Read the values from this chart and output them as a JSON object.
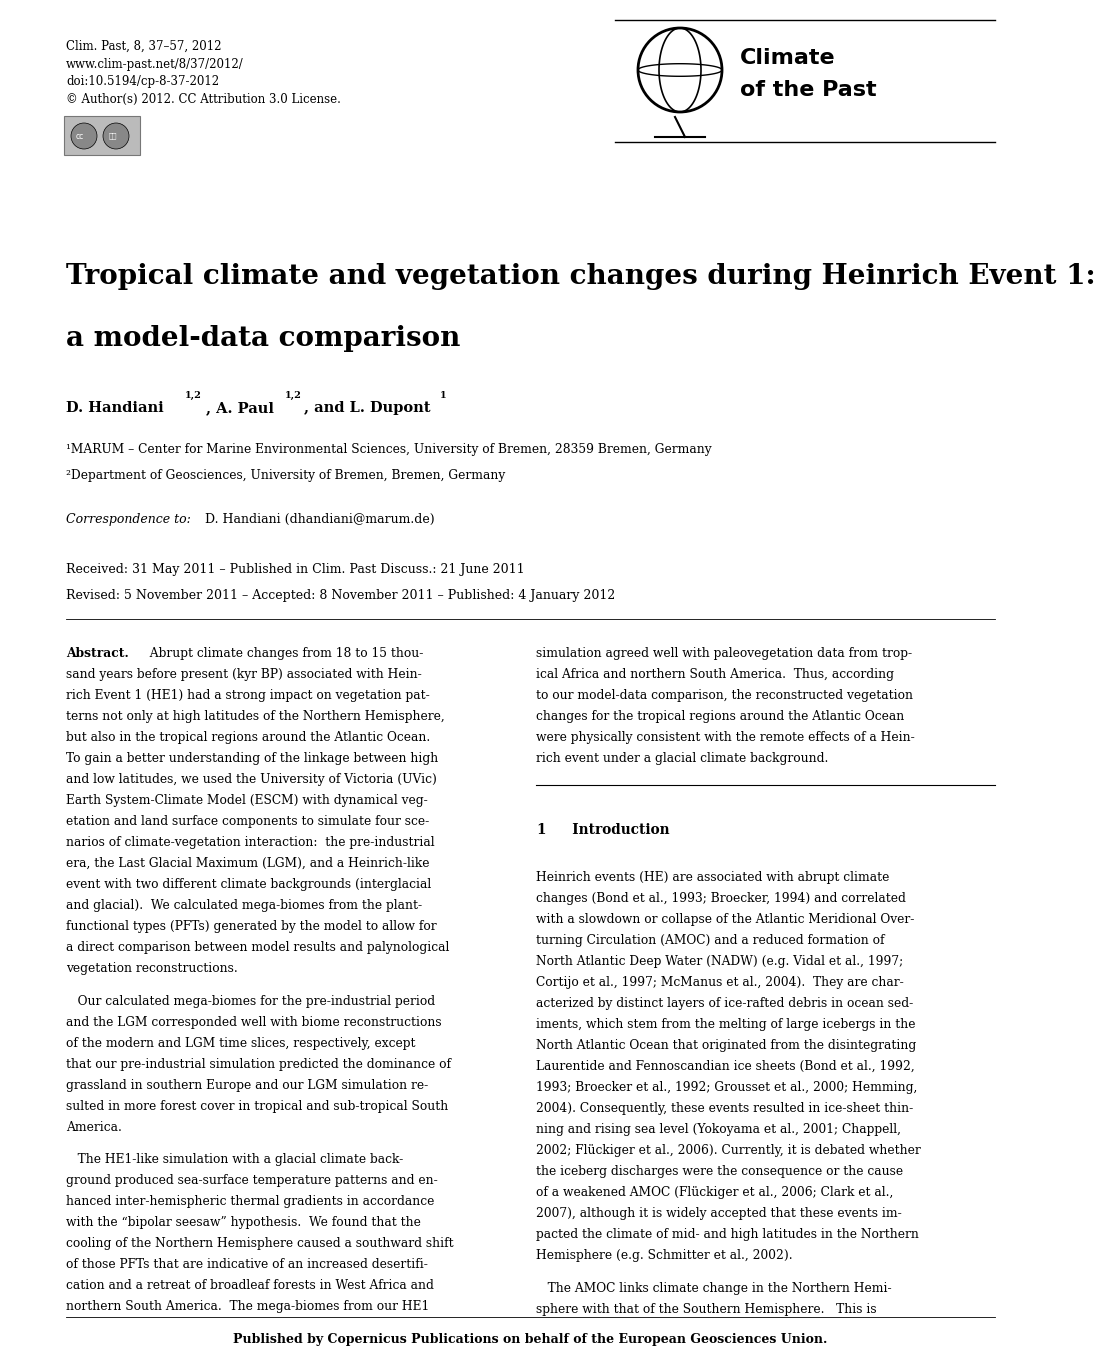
{
  "bg_color": "#ffffff",
  "header_left_lines": [
    "Clim. Past, 8, 37–57, 2012",
    "www.clim-past.net/8/37/2012/",
    "doi:10.5194/cp-8-37-2012",
    "© Author(s) 2012. CC Attribution 3.0 License."
  ],
  "journal_name_line1": "Climate",
  "journal_name_line2": "of the Past",
  "paper_title_line1": "Tropical climate and vegetation changes during Heinrich Event 1:",
  "paper_title_line2": "a model-data comparison",
  "affil1": "¹MARUM – Center for Marine Environmental Sciences, University of Bremen, 28359 Bremen, Germany",
  "affil2": "²Department of Geosciences, University of Bremen, Bremen, Germany",
  "correspondence_label": "Correspondence to:",
  "correspondence_text": " D. Handiani (dhandiani@marum.de)",
  "received_line1": "Received: 31 May 2011 – Published in Clim. Past Discuss.: 21 June 2011",
  "received_line2": "Revised: 5 November 2011 – Accepted: 8 November 2011 – Published: 4 January 2012",
  "footer": "Published by Copernicus Publications on behalf of the European Geosciences Union."
}
